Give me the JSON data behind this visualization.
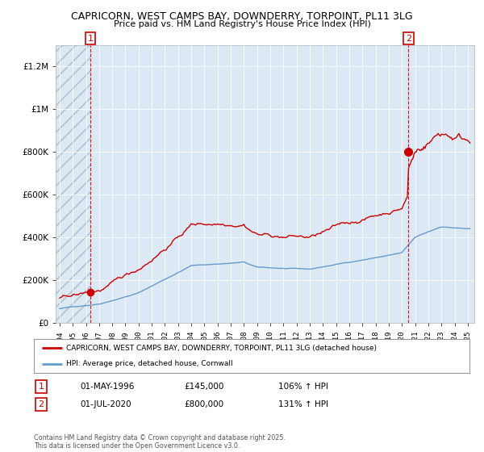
{
  "title": "CAPRICORN, WEST CAMPS BAY, DOWNDERRY, TORPOINT, PL11 3LG",
  "subtitle": "Price paid vs. HM Land Registry's House Price Index (HPI)",
  "legend_line1": "CAPRICORN, WEST CAMPS BAY, DOWNDERRY, TORPOINT, PL11 3LG (detached house)",
  "legend_line2": "HPI: Average price, detached house, Cornwall",
  "annotation1_label": "1",
  "annotation1_date": "01-MAY-1996",
  "annotation1_price": "£145,000",
  "annotation1_hpi": "106% ↑ HPI",
  "annotation2_label": "2",
  "annotation2_date": "01-JUL-2020",
  "annotation2_price": "£800,000",
  "annotation2_hpi": "131% ↑ HPI",
  "footer": "Contains HM Land Registry data © Crown copyright and database right 2025.\nThis data is licensed under the Open Government Licence v3.0.",
  "house_color": "#cc0000",
  "hpi_color": "#6699cc",
  "background_color": "#ffffff",
  "plot_bg_color": "#dce9f5",
  "hatch_color": "#c8d8e8",
  "ylim": [
    0,
    1300000
  ],
  "xlim_start": 1993.7,
  "xlim_end": 2025.5,
  "marker1_x": 1996.33,
  "marker1_y": 145000,
  "marker2_x": 2020.5,
  "marker2_y": 800000,
  "vline1_x": 1996.33,
  "vline2_x": 2020.5,
  "figwidth": 6.0,
  "figheight": 5.6,
  "dpi": 100
}
